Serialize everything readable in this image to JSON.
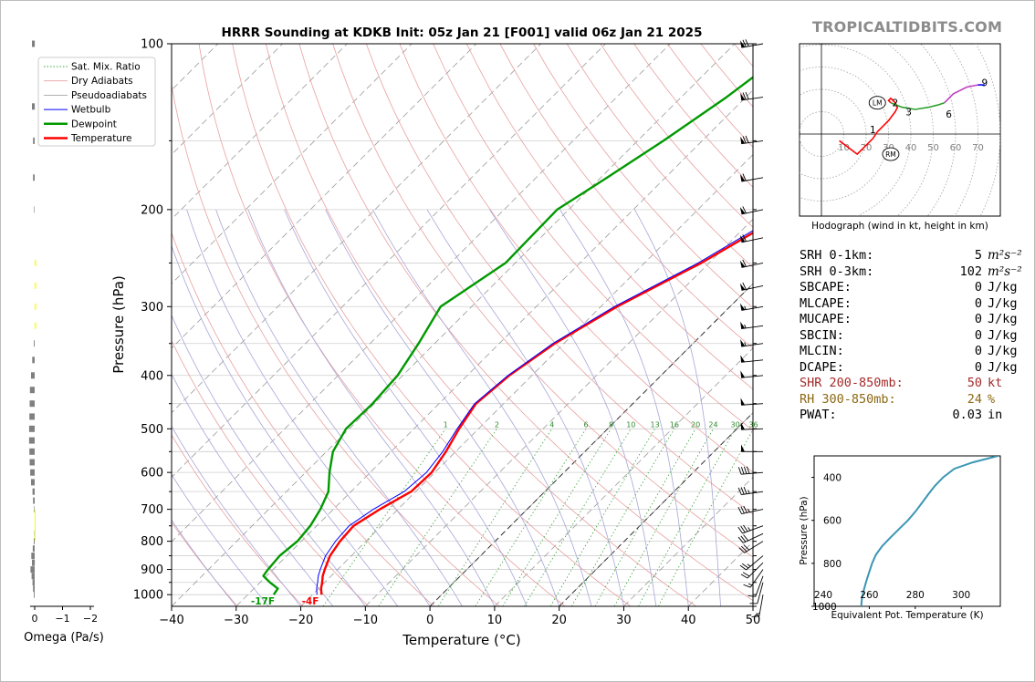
{
  "site_label": "TROPICALTIDBITS.COM",
  "chart_data": [
    {
      "type": "line",
      "title": "HRRR Sounding at KDKB Init: 05z Jan 21 [F001] valid 06z Jan 21 2025",
      "xlabel": "Temperature (°C)",
      "ylabel": "Pressure (hPa)",
      "xlim": [
        -40,
        50
      ],
      "ylim": [
        1050,
        100
      ],
      "y_scale": "log",
      "x_ticks": [
        "−40",
        "−30",
        "−20",
        "−10",
        "0",
        "10",
        "20",
        "30",
        "40",
        "50"
      ],
      "y_ticks": [
        "100",
        "200",
        "300",
        "400",
        "500",
        "600",
        "700",
        "800",
        "900",
        "1000"
      ],
      "grid": true,
      "legend_position": "top-left",
      "legend": [
        "Sat. Mix. Ratio",
        "Dry Adiabats",
        "Pseudoadiabats",
        "Wetbulb",
        "Dewpoint",
        "Temperature"
      ],
      "mixing_ratio_labels": [
        "1",
        "2",
        "4",
        "6",
        "8",
        "10",
        "13",
        "16",
        "20",
        "24",
        "30",
        "36"
      ],
      "series": [
        {
          "name": "Temperature",
          "color": "#ff0000",
          "points": [
            [
              -18.6,
              1000
            ],
            [
              -19.6,
              975
            ],
            [
              -20.4,
              950
            ],
            [
              -21.3,
              925
            ],
            [
              -22.0,
              900
            ],
            [
              -23.3,
              850
            ],
            [
              -24.0,
              800
            ],
            [
              -24.3,
              750
            ],
            [
              -22.8,
              700
            ],
            [
              -20.7,
              650
            ],
            [
              -20.5,
              600
            ],
            [
              -21.5,
              550
            ],
            [
              -23.0,
              500
            ],
            [
              -24.3,
              450
            ],
            [
              -23.5,
              400
            ],
            [
              -21.4,
              350
            ],
            [
              -17.5,
              300
            ],
            [
              -11.2,
              250
            ],
            [
              -5.3,
              200
            ],
            [
              1.0,
              175
            ],
            [
              5.4,
              150
            ],
            [
              8.5,
              125
            ],
            [
              12.2,
              100
            ]
          ]
        },
        {
          "name": "Wetbulb",
          "color": "#0000ff",
          "points": [
            [
              -19.3,
              1000
            ],
            [
              -20.3,
              975
            ],
            [
              -21.1,
              950
            ],
            [
              -22.0,
              925
            ],
            [
              -22.7,
              900
            ],
            [
              -24.0,
              850
            ],
            [
              -24.7,
              800
            ],
            [
              -25.0,
              750
            ],
            [
              -23.8,
              700
            ],
            [
              -21.8,
              650
            ],
            [
              -21.3,
              600
            ],
            [
              -22.0,
              550
            ],
            [
              -23.3,
              500
            ],
            [
              -24.5,
              450
            ],
            [
              -23.7,
              400
            ],
            [
              -21.7,
              350
            ],
            [
              -17.9,
              300
            ],
            [
              -11.7,
              250
            ],
            [
              -6.0,
              200
            ],
            [
              0.2,
              175
            ],
            [
              4.8,
              150
            ],
            [
              7.8,
              125
            ],
            [
              11.4,
              100
            ]
          ]
        },
        {
          "name": "Dewpoint",
          "color": "#009900",
          "points": [
            [
              -26.0,
              1000
            ],
            [
              -26.3,
              975
            ],
            [
              -28.5,
              950
            ],
            [
              -30.5,
              925
            ],
            [
              -30.8,
              900
            ],
            [
              -31.1,
              850
            ],
            [
              -30.6,
              800
            ],
            [
              -31.0,
              750
            ],
            [
              -32.0,
              700
            ],
            [
              -33.5,
              650
            ],
            [
              -36.3,
              600
            ],
            [
              -39.0,
              550
            ],
            [
              -40.5,
              500
            ],
            [
              -40.3,
              450
            ],
            [
              -40.8,
              400
            ],
            [
              -42.5,
              350
            ],
            [
              -44.8,
              300
            ],
            [
              -41.5,
              250
            ],
            [
              -41.8,
              200
            ],
            [
              -39.0,
              175
            ],
            [
              -36.0,
              150
            ],
            [
              -33.0,
              125
            ],
            [
              -30.3,
              100
            ]
          ]
        }
      ],
      "surface_labels": {
        "dewpoint": "-17F",
        "temperature": "-4F"
      }
    },
    {
      "type": "bar",
      "xlabel": "Omega (Pa/s)",
      "x_ticks": [
        "0",
        "−1",
        "−2"
      ],
      "pressure": [
        100,
        130,
        150,
        175,
        200,
        225,
        250,
        275,
        300,
        325,
        350,
        375,
        400,
        425,
        450,
        475,
        500,
        525,
        550,
        575,
        600,
        625,
        650,
        675,
        700,
        725,
        750,
        775,
        800,
        825,
        850,
        875,
        900,
        925,
        950,
        975,
        1000
      ],
      "values": [
        0.1,
        0.1,
        0.06,
        0.06,
        0.02,
        0.0,
        -0.03,
        -0.05,
        -0.03,
        -0.01,
        0.03,
        0.09,
        0.13,
        0.17,
        0.18,
        0.19,
        0.2,
        0.2,
        0.19,
        0.18,
        0.16,
        0.13,
        0.08,
        0.06,
        0.02,
        0.0,
        0.0,
        0.01,
        0.03,
        0.07,
        0.12,
        0.1,
        0.15,
        0.11,
        0.08,
        0.06,
        0.03
      ],
      "colors": {
        "ascent": "#808080",
        "descent": "#ffff00"
      }
    },
    {
      "type": "line",
      "title": "Hodograph (wind in kt, height in km)",
      "x_ticks": [
        "10",
        "20",
        "30",
        "40",
        "50",
        "60",
        "70"
      ],
      "height_labels": [
        "1",
        "2",
        "3",
        "6",
        "9"
      ],
      "storm_motion_labels": [
        "LM",
        "RM"
      ],
      "series": [
        {
          "name": "0-1 km",
          "color": "#ff0000",
          "points": [
            [
              8,
              -3
            ],
            [
              16,
              -9
            ],
            [
              20,
              -5
            ],
            [
              23,
              -2
            ],
            [
              25,
              1
            ]
          ]
        },
        {
          "name": "1-3 km",
          "color": "#ff0000",
          "points": [
            [
              25,
              1
            ],
            [
              30,
              6
            ],
            [
              33,
              10
            ],
            [
              34,
              12
            ],
            [
              33,
              14
            ],
            [
              31,
              16
            ],
            [
              30,
              15
            ],
            [
              31,
              14
            ]
          ]
        },
        {
          "name": "3-6 km",
          "color": "#2ca02c",
          "points": [
            [
              31,
              14
            ],
            [
              36,
              12
            ],
            [
              42,
              11
            ],
            [
              48,
              12
            ],
            [
              52,
              13
            ],
            [
              55,
              14
            ]
          ]
        },
        {
          "name": "6-9 km",
          "color": "#c040c0",
          "points": [
            [
              55,
              14
            ],
            [
              59,
              18
            ],
            [
              65,
              21
            ],
            [
              70,
              22
            ]
          ]
        },
        {
          "name": "9+ km",
          "color": "#0000ff",
          "points": [
            [
              70,
              22
            ],
            [
              73,
              22
            ]
          ]
        }
      ],
      "lm": [
        25,
        14
      ],
      "rm": [
        31,
        -9
      ]
    },
    {
      "type": "line",
      "xlabel": "Equivalent Pot. Temperature (K)",
      "ylabel": "Pressure (hPa)",
      "x_ticks": [
        "240",
        "260",
        "280",
        "300"
      ],
      "y_ticks": [
        "400",
        "600",
        "800",
        "1000"
      ],
      "xlim": [
        236,
        317
      ],
      "ylim": [
        1000,
        300
      ],
      "series": [
        {
          "name": "theta-e",
          "color": "#3a96b4",
          "points": [
            [
              256.5,
              1000
            ],
            [
              256.8,
              960
            ],
            [
              257.7,
              920
            ],
            [
              258.8,
              880
            ],
            [
              260.0,
              840
            ],
            [
              261.2,
              800
            ],
            [
              262.9,
              760
            ],
            [
              265.6,
              720
            ],
            [
              269.2,
              680
            ],
            [
              273.0,
              640
            ],
            [
              276.8,
              600
            ],
            [
              280.0,
              560
            ],
            [
              282.8,
              520
            ],
            [
              285.6,
              480
            ],
            [
              288.5,
              440
            ],
            [
              292.1,
              400
            ],
            [
              297.0,
              360
            ],
            [
              305.0,
              330
            ],
            [
              316.0,
              300
            ]
          ]
        }
      ]
    }
  ],
  "stats": [
    {
      "label": "SRH 0-1km:",
      "value": "5",
      "unit": "m²s⁻²",
      "color": "#000000"
    },
    {
      "label": "SRH 0-3km:",
      "value": "102",
      "unit": "m²s⁻²",
      "color": "#000000"
    },
    {
      "label": "SBCAPE:",
      "value": "0",
      "unit": "J/kg",
      "color": "#000000"
    },
    {
      "label": "MLCAPE:",
      "value": "0",
      "unit": "J/kg",
      "color": "#000000"
    },
    {
      "label": "MUCAPE:",
      "value": "0",
      "unit": "J/kg",
      "color": "#000000"
    },
    {
      "label": "SBCIN:",
      "value": "0",
      "unit": "J/kg",
      "color": "#000000"
    },
    {
      "label": "MLCIN:",
      "value": "0",
      "unit": "J/kg",
      "color": "#000000"
    },
    {
      "label": "DCAPE:",
      "value": "0",
      "unit": "J/kg",
      "color": "#000000"
    },
    {
      "label": "SHR 200-850mb:",
      "value": "50",
      "unit": "kt",
      "color": "#a52a2a"
    },
    {
      "label": "RH 300-850mb:",
      "value": "24",
      "unit": "%",
      "color": "#8b6914"
    },
    {
      "label": "PWAT:",
      "value": "0.03",
      "unit": "in",
      "color": "#000000"
    }
  ],
  "wind_barbs": [
    {
      "p": 100,
      "dir": 260,
      "kt": 70
    },
    {
      "p": 125,
      "dir": 262,
      "kt": 72
    },
    {
      "p": 150,
      "dir": 262,
      "kt": 68
    },
    {
      "p": 175,
      "dir": 260,
      "kt": 62
    },
    {
      "p": 200,
      "dir": 258,
      "kt": 62
    },
    {
      "p": 225,
      "dir": 258,
      "kt": 62
    },
    {
      "p": 250,
      "dir": 258,
      "kt": 60
    },
    {
      "p": 275,
      "dir": 258,
      "kt": 60
    },
    {
      "p": 300,
      "dir": 260,
      "kt": 55
    },
    {
      "p": 325,
      "dir": 262,
      "kt": 55
    },
    {
      "p": 350,
      "dir": 262,
      "kt": 55
    },
    {
      "p": 375,
      "dir": 264,
      "kt": 52
    },
    {
      "p": 400,
      "dir": 264,
      "kt": 52
    },
    {
      "p": 450,
      "dir": 266,
      "kt": 50
    },
    {
      "p": 500,
      "dir": 268,
      "kt": 50
    },
    {
      "p": 550,
      "dir": 270,
      "kt": 50
    },
    {
      "p": 600,
      "dir": 265,
      "kt": 40
    },
    {
      "p": 650,
      "dir": 262,
      "kt": 35
    },
    {
      "p": 700,
      "dir": 258,
      "kt": 35
    },
    {
      "p": 750,
      "dir": 250,
      "kt": 35
    },
    {
      "p": 775,
      "dir": 245,
      "kt": 32
    },
    {
      "p": 800,
      "dir": 238,
      "kt": 30
    },
    {
      "p": 850,
      "dir": 230,
      "kt": 25
    },
    {
      "p": 875,
      "dir": 225,
      "kt": 20
    },
    {
      "p": 900,
      "dir": 215,
      "kt": 15
    },
    {
      "p": 925,
      "dir": 200,
      "kt": 10
    },
    {
      "p": 950,
      "dir": 195,
      "kt": 10
    },
    {
      "p": 1000,
      "dir": 190,
      "kt": 15
    }
  ]
}
